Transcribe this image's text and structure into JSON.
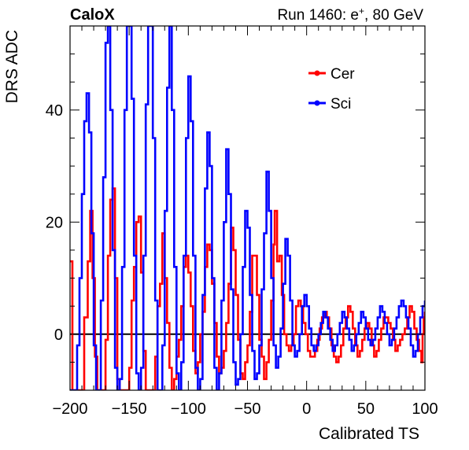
{
  "header": {
    "left": "CaloX",
    "right_prefix": "Run 1460: e",
    "right_sup": "+",
    "right_suffix": ", 80 GeV"
  },
  "chart_data": {
    "type": "line",
    "xlabel": "Calibrated TS",
    "ylabel": "DRS ADC",
    "xlim": [
      -200,
      100
    ],
    "ylim": [
      -10,
      55
    ],
    "x_ticks": [
      {
        "value": -200,
        "label": "−200"
      },
      {
        "value": -150,
        "label": "−150"
      },
      {
        "value": -100,
        "label": "−100"
      },
      {
        "value": -50,
        "label": "−50"
      },
      {
        "value": 0,
        "label": "0"
      },
      {
        "value": 50,
        "label": "50"
      },
      {
        "value": 100,
        "label": "100"
      }
    ],
    "y_ticks": [
      {
        "value": 0,
        "label": "0"
      },
      {
        "value": 20,
        "label": "20"
      },
      {
        "value": 40,
        "label": "40"
      }
    ],
    "zero_line": true,
    "legend_position": "top-right",
    "series": [
      {
        "name": "Cer",
        "color": "#ff0000",
        "points": [
          [
            -200,
            13
          ],
          [
            -198,
            -10
          ],
          [
            -195,
            -10
          ],
          [
            -193,
            -10
          ],
          [
            -190,
            -10
          ],
          [
            -188,
            3
          ],
          [
            -185,
            13
          ],
          [
            -183,
            22
          ],
          [
            -181,
            10
          ],
          [
            -179,
            -4
          ],
          [
            -177,
            -10
          ],
          [
            -174,
            -10
          ],
          [
            -172,
            -10
          ],
          [
            -170,
            -1
          ],
          [
            -168,
            14
          ],
          [
            -166,
            24
          ],
          [
            -164,
            26
          ],
          [
            -162,
            10
          ],
          [
            -160,
            -8
          ],
          [
            -158,
            -10
          ],
          [
            -155,
            -10
          ],
          [
            -152,
            -10
          ],
          [
            -150,
            -6
          ],
          [
            -148,
            6
          ],
          [
            -146,
            12
          ],
          [
            -144,
            20
          ],
          [
            -142,
            21
          ],
          [
            -140,
            11
          ],
          [
            -138,
            -3
          ],
          [
            -136,
            -10
          ],
          [
            -133,
            -10
          ],
          [
            -130,
            -10
          ],
          [
            -128,
            -4
          ],
          [
            -126,
            5
          ],
          [
            -124,
            9
          ],
          [
            -122,
            18
          ],
          [
            -120,
            10
          ],
          [
            -118,
            2
          ],
          [
            -116,
            -6
          ],
          [
            -114,
            -10
          ],
          [
            -112,
            -8
          ],
          [
            -110,
            -4
          ],
          [
            -108,
            -1
          ],
          [
            -106,
            5
          ],
          [
            -104,
            12
          ],
          [
            -102,
            14
          ],
          [
            -100,
            11
          ],
          [
            -98,
            5
          ],
          [
            -96,
            -3
          ],
          [
            -94,
            -7
          ],
          [
            -92,
            -5
          ],
          [
            -90,
            0
          ],
          [
            -88,
            4
          ],
          [
            -86,
            12
          ],
          [
            -84,
            16
          ],
          [
            -82,
            15
          ],
          [
            -80,
            9
          ],
          [
            -78,
            2
          ],
          [
            -76,
            -4
          ],
          [
            -74,
            -7
          ],
          [
            -72,
            -6
          ],
          [
            -70,
            -3
          ],
          [
            -68,
            2
          ],
          [
            -66,
            9
          ],
          [
            -64,
            19
          ],
          [
            -62,
            15
          ],
          [
            -60,
            7
          ],
          [
            -58,
            -1
          ],
          [
            -56,
            -7
          ],
          [
            -54,
            -8
          ],
          [
            -52,
            -5
          ],
          [
            -50,
            -2
          ],
          [
            -48,
            4
          ],
          [
            -46,
            14
          ],
          [
            -44,
            14
          ],
          [
            -42,
            7
          ],
          [
            -40,
            -1
          ],
          [
            -38,
            -4
          ],
          [
            -36,
            -8
          ],
          [
            -34,
            -5
          ],
          [
            -32,
            -1
          ],
          [
            -30,
            6
          ],
          [
            -28,
            16
          ],
          [
            -27,
            22
          ],
          [
            -25,
            13
          ],
          [
            -23,
            14
          ],
          [
            -21,
            7
          ],
          [
            -19,
            0
          ],
          [
            -17,
            -2
          ],
          [
            -15,
            -3
          ],
          [
            -13,
            -2
          ],
          [
            -11,
            0
          ],
          [
            -9,
            5
          ],
          [
            -7,
            6
          ],
          [
            -5,
            5
          ],
          [
            -3,
            2
          ],
          [
            -1,
            0
          ],
          [
            1,
            -3
          ],
          [
            3,
            -4
          ],
          [
            5,
            -4
          ],
          [
            7,
            -3
          ],
          [
            9,
            -1
          ],
          [
            11,
            1
          ],
          [
            13,
            3
          ],
          [
            15,
            4
          ],
          [
            17,
            3
          ],
          [
            19,
            1
          ],
          [
            21,
            -2
          ],
          [
            23,
            -4
          ],
          [
            25,
            -5
          ],
          [
            27,
            -4
          ],
          [
            29,
            -2
          ],
          [
            31,
            1
          ],
          [
            33,
            3
          ],
          [
            35,
            5
          ],
          [
            37,
            4
          ],
          [
            39,
            1
          ],
          [
            41,
            -2
          ],
          [
            43,
            -4
          ],
          [
            45,
            -3
          ],
          [
            47,
            -1
          ],
          [
            49,
            1
          ],
          [
            51,
            2
          ],
          [
            53,
            1
          ],
          [
            55,
            -2
          ],
          [
            57,
            -4
          ],
          [
            59,
            -3
          ],
          [
            61,
            -1
          ],
          [
            63,
            1
          ],
          [
            65,
            3
          ],
          [
            67,
            3
          ],
          [
            69,
            2
          ],
          [
            71,
            1
          ],
          [
            73,
            -1
          ],
          [
            75,
            -3
          ],
          [
            77,
            -2
          ],
          [
            79,
            -1
          ],
          [
            81,
            0
          ],
          [
            83,
            1
          ],
          [
            85,
            3
          ],
          [
            87,
            5
          ],
          [
            89,
            4
          ],
          [
            91,
            1
          ],
          [
            93,
            -1
          ],
          [
            95,
            -3
          ],
          [
            97,
            -5
          ],
          [
            98,
            0
          ],
          [
            99,
            3
          ],
          [
            100,
            4
          ]
        ]
      },
      {
        "name": "Sci",
        "color": "#0000ff",
        "points": [
          [
            -200,
            -10
          ],
          [
            -198,
            -10
          ],
          [
            -196,
            -10
          ],
          [
            -194,
            -2
          ],
          [
            -192,
            10
          ],
          [
            -190,
            25
          ],
          [
            -188,
            38
          ],
          [
            -186,
            43
          ],
          [
            -184,
            36
          ],
          [
            -182,
            18
          ],
          [
            -180,
            -2
          ],
          [
            -178,
            -10
          ],
          [
            -176,
            -10
          ],
          [
            -174,
            6
          ],
          [
            -172,
            28
          ],
          [
            -170,
            52
          ],
          [
            -168,
            55
          ],
          [
            -166,
            40
          ],
          [
            -164,
            15
          ],
          [
            -162,
            -6
          ],
          [
            -160,
            -10
          ],
          [
            -158,
            -8
          ],
          [
            -156,
            12
          ],
          [
            -154,
            40
          ],
          [
            -152,
            55
          ],
          [
            -150,
            55
          ],
          [
            -148,
            42
          ],
          [
            -146,
            14
          ],
          [
            -144,
            -7
          ],
          [
            -142,
            -10
          ],
          [
            -140,
            -6
          ],
          [
            -138,
            14
          ],
          [
            -136,
            41
          ],
          [
            -134,
            55
          ],
          [
            -132,
            55
          ],
          [
            -130,
            35
          ],
          [
            -128,
            6
          ],
          [
            -126,
            -10
          ],
          [
            -124,
            -10
          ],
          [
            -122,
            -2
          ],
          [
            -120,
            22
          ],
          [
            -118,
            44
          ],
          [
            -116,
            55
          ],
          [
            -114,
            40
          ],
          [
            -112,
            12
          ],
          [
            -110,
            -7
          ],
          [
            -108,
            -10
          ],
          [
            -106,
            -5
          ],
          [
            -104,
            14
          ],
          [
            -102,
            35
          ],
          [
            -100,
            46
          ],
          [
            -98,
            38
          ],
          [
            -96,
            14
          ],
          [
            -94,
            -6
          ],
          [
            -92,
            -10
          ],
          [
            -90,
            -8
          ],
          [
            -88,
            7
          ],
          [
            -86,
            26
          ],
          [
            -84,
            36
          ],
          [
            -82,
            30
          ],
          [
            -80,
            10
          ],
          [
            -78,
            -6
          ],
          [
            -76,
            -10
          ],
          [
            -74,
            -7
          ],
          [
            -72,
            6
          ],
          [
            -70,
            20
          ],
          [
            -68,
            33
          ],
          [
            -66,
            25
          ],
          [
            -64,
            8
          ],
          [
            -62,
            -5
          ],
          [
            -60,
            -9
          ],
          [
            -58,
            -8
          ],
          [
            -56,
            0
          ],
          [
            -54,
            12
          ],
          [
            -52,
            22
          ],
          [
            -50,
            19
          ],
          [
            -48,
            7
          ],
          [
            -46,
            -3
          ],
          [
            -44,
            -8
          ],
          [
            -42,
            -7
          ],
          [
            -40,
            -2
          ],
          [
            -38,
            8
          ],
          [
            -36,
            18
          ],
          [
            -34,
            29
          ],
          [
            -32,
            22
          ],
          [
            -30,
            10
          ],
          [
            -28,
            -2
          ],
          [
            -26,
            -6
          ],
          [
            -24,
            -4
          ],
          [
            -22,
            1
          ],
          [
            -20,
            9
          ],
          [
            -18,
            17
          ],
          [
            -16,
            14
          ],
          [
            -14,
            6
          ],
          [
            -12,
            -2
          ],
          [
            -10,
            -4
          ],
          [
            -8,
            -3
          ],
          [
            -6,
            0
          ],
          [
            -4,
            5
          ],
          [
            -2,
            7
          ],
          [
            0,
            5
          ],
          [
            2,
            1
          ],
          [
            4,
            -2
          ],
          [
            6,
            -3
          ],
          [
            8,
            -2
          ],
          [
            10,
            0
          ],
          [
            12,
            2
          ],
          [
            14,
            4
          ],
          [
            16,
            3
          ],
          [
            18,
            1
          ],
          [
            20,
            -1
          ],
          [
            22,
            -3
          ],
          [
            24,
            -2
          ],
          [
            26,
            0
          ],
          [
            28,
            2
          ],
          [
            30,
            4
          ],
          [
            32,
            3
          ],
          [
            34,
            1
          ],
          [
            36,
            -1
          ],
          [
            38,
            -3
          ],
          [
            40,
            -2
          ],
          [
            42,
            0
          ],
          [
            44,
            2
          ],
          [
            46,
            4
          ],
          [
            48,
            3
          ],
          [
            50,
            1
          ],
          [
            52,
            -1
          ],
          [
            54,
            -2
          ],
          [
            56,
            -1
          ],
          [
            58,
            1
          ],
          [
            60,
            3
          ],
          [
            62,
            5
          ],
          [
            64,
            4
          ],
          [
            66,
            2
          ],
          [
            68,
            0
          ],
          [
            70,
            -2
          ],
          [
            72,
            -1
          ],
          [
            74,
            1
          ],
          [
            76,
            3
          ],
          [
            78,
            5
          ],
          [
            80,
            6
          ],
          [
            82,
            5
          ],
          [
            84,
            3
          ],
          [
            86,
            1
          ],
          [
            88,
            -2
          ],
          [
            90,
            -4
          ],
          [
            92,
            -3
          ],
          [
            94,
            0
          ],
          [
            96,
            3
          ],
          [
            98,
            5
          ],
          [
            100,
            6
          ]
        ]
      }
    ]
  }
}
